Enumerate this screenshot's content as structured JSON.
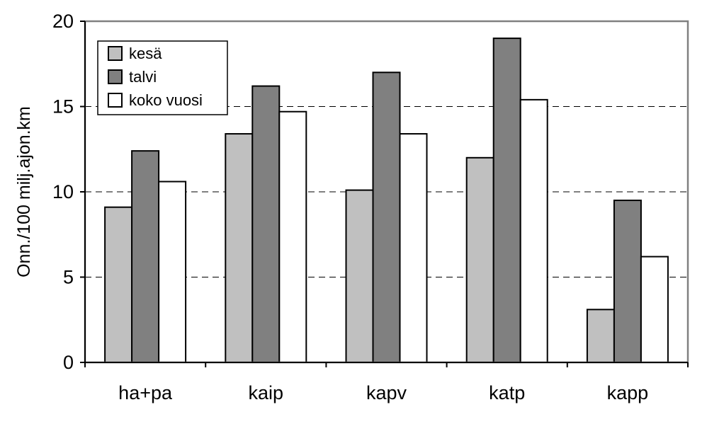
{
  "chart_data": {
    "type": "bar",
    "ylabel": "Onn./100 milj.ajon.km",
    "xlabel": "",
    "ylim": [
      0,
      20
    ],
    "yticks": [
      0,
      5,
      10,
      15,
      20
    ],
    "grid": "horizontal dashed",
    "legend_position": "top-left",
    "categories": [
      "ha+pa",
      "kaip",
      "kapv",
      "katp",
      "kapp"
    ],
    "series": [
      {
        "name": "kesä",
        "color": "#c0c0c0",
        "values": [
          9.1,
          13.4,
          10.1,
          12.0,
          3.1
        ]
      },
      {
        "name": "talvi",
        "color": "#808080",
        "values": [
          12.4,
          16.2,
          17.0,
          19.0,
          9.5
        ]
      },
      {
        "name": "koko vuosi",
        "color": "#ffffff",
        "values": [
          10.6,
          14.7,
          13.4,
          15.4,
          6.2
        ]
      }
    ]
  }
}
